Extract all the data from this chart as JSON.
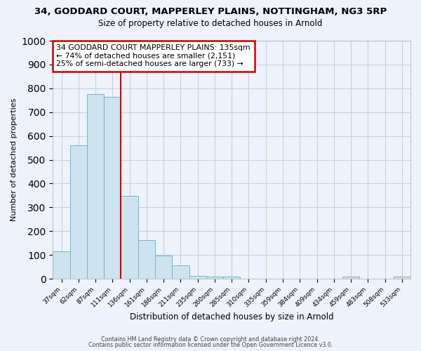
{
  "title": "34, GODDARD COURT, MAPPERLEY PLAINS, NOTTINGHAM, NG3 5RP",
  "subtitle": "Size of property relative to detached houses in Arnold",
  "xlabel": "Distribution of detached houses by size in Arnold",
  "ylabel": "Number of detached properties",
  "bar_labels": [
    "37sqm",
    "62sqm",
    "87sqm",
    "111sqm",
    "136sqm",
    "161sqm",
    "186sqm",
    "211sqm",
    "235sqm",
    "260sqm",
    "285sqm",
    "310sqm",
    "335sqm",
    "359sqm",
    "384sqm",
    "409sqm",
    "434sqm",
    "459sqm",
    "483sqm",
    "508sqm",
    "533sqm"
  ],
  "bar_values": [
    115,
    560,
    775,
    765,
    348,
    163,
    97,
    55,
    13,
    10,
    8,
    0,
    0,
    0,
    0,
    0,
    0,
    10,
    0,
    0,
    8
  ],
  "bar_color": "#cde4f0",
  "bar_edge_color": "#7ab0cc",
  "vline_x": 4,
  "vline_color": "#cc0000",
  "annotation_line1": "34 GODDARD COURT MAPPERLEY PLAINS: 135sqm",
  "annotation_line2": "← 74% of detached houses are smaller (2,151)",
  "annotation_line3": "25% of semi-detached houses are larger (733) →",
  "annotation_box_color": "white",
  "annotation_box_edge": "#cc0000",
  "ylim": [
    0,
    1000
  ],
  "yticks": [
    0,
    100,
    200,
    300,
    400,
    500,
    600,
    700,
    800,
    900,
    1000
  ],
  "footer1": "Contains HM Land Registry data © Crown copyright and database right 2024.",
  "footer2": "Contains public sector information licensed under the Open Government Licence v3.0.",
  "bg_color": "#eef2fa",
  "grid_color": "#c5d0e8"
}
